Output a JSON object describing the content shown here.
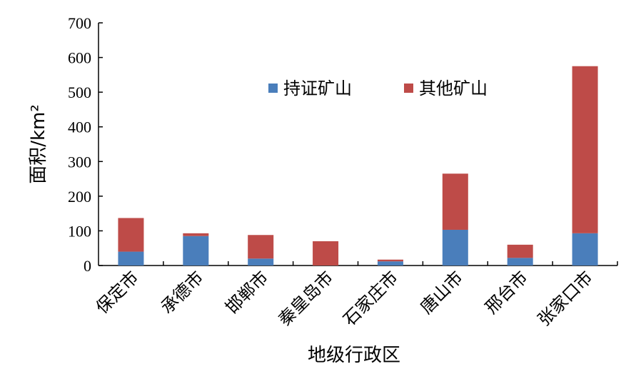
{
  "chart_data": {
    "type": "bar",
    "stacked": true,
    "categories": [
      "保定市",
      "承德市",
      "邯郸市",
      "秦皇岛市",
      "石家庄市",
      "唐山市",
      "邢台市",
      "张家口市"
    ],
    "series": [
      {
        "name": "持证矿山",
        "color": "#4a7ebb",
        "values": [
          40,
          85,
          20,
          0,
          12,
          103,
          22,
          93
        ]
      },
      {
        "name": "其他矿山",
        "color": "#be4b48",
        "values": [
          97,
          8,
          68,
          70,
          5,
          162,
          38,
          482
        ]
      }
    ],
    "xlabel": "地级行政区",
    "ylabel": "面积/km²",
    "ylim": [
      0,
      700
    ],
    "yticks": [
      0,
      100,
      200,
      300,
      400,
      500,
      600,
      700
    ],
    "grid": false,
    "legend": "top-center"
  }
}
